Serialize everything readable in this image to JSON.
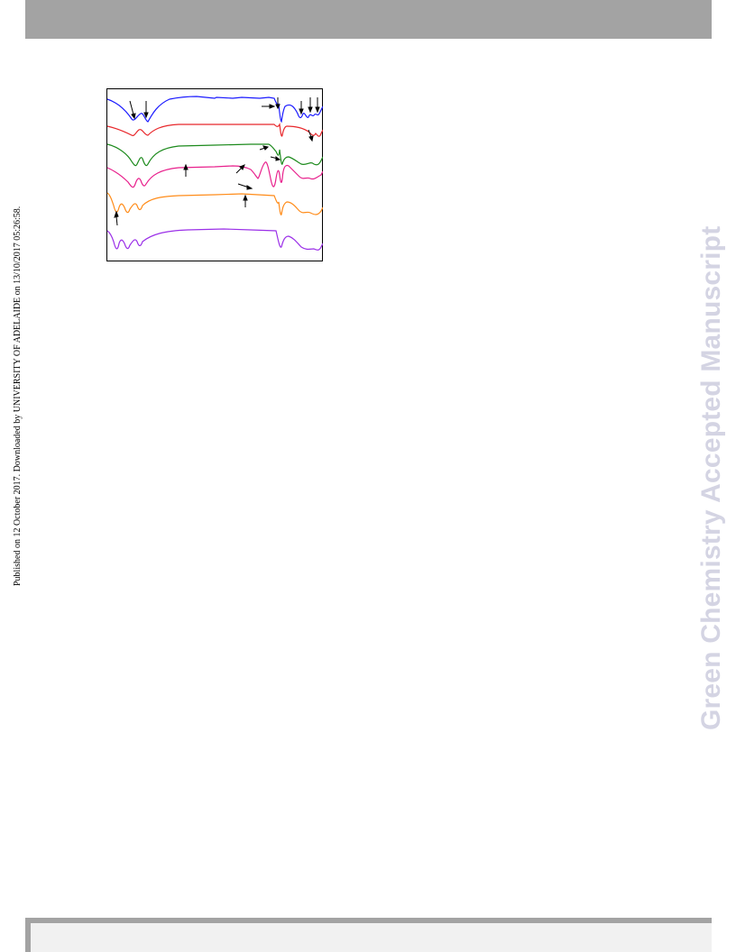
{
  "page": {
    "published_note": "Published on 12 October 2017. Downloaded by UNIVERSITY OF ADELAIDE on 13/10/2017 05:26:58.",
    "watermark": "Green Chemistry Accepted Manuscript"
  },
  "figure": {
    "description_colors": {
      "blue": "#1a1aff",
      "red": "#e8262a",
      "green": "#1c8a1c",
      "magenta": "#e8208c",
      "orange": "#ff8c1a",
      "violet": "#9b30e8",
      "arrow": "#000000",
      "frame": "#000000"
    }
  }
}
